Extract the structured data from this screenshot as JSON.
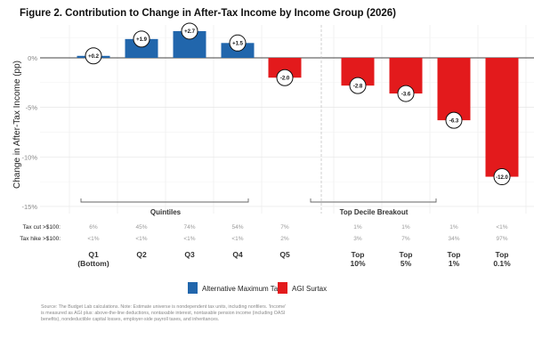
{
  "chart_data": {
    "type": "bar",
    "title": "Figure 2. Contribution to Change in After-Tax Income by Income Group (2026)",
    "ylabel": "Change in After-Tax Income (pp)",
    "xlabel": "",
    "ylim": [
      -15,
      3
    ],
    "yticks": [
      0,
      -5,
      -10,
      -15
    ],
    "ytick_labels": [
      "0%",
      "-5%",
      "-10%",
      "-15%"
    ],
    "grid": true,
    "categories": [
      {
        "label": [
          "Q1",
          "(Bottom)"
        ],
        "value": 0.2,
        "data_label": "+0.2",
        "series": "Alternative Maximum Tax",
        "tax_cut": "6%",
        "tax_hike": "<1%"
      },
      {
        "label": [
          "Q2"
        ],
        "value": 1.9,
        "data_label": "+1.9",
        "series": "Alternative Maximum Tax",
        "tax_cut": "45%",
        "tax_hike": "<1%"
      },
      {
        "label": [
          "Q3"
        ],
        "value": 2.7,
        "data_label": "+2.7",
        "series": "Alternative Maximum Tax",
        "tax_cut": "74%",
        "tax_hike": "<1%"
      },
      {
        "label": [
          "Q4"
        ],
        "value": 1.5,
        "data_label": "+1.5",
        "series": "Alternative Maximum Tax",
        "tax_cut": "54%",
        "tax_hike": "<1%"
      },
      {
        "label": [
          "Q5"
        ],
        "value": -2.0,
        "data_label": "-2.0",
        "series": "AGI Surtax",
        "tax_cut": "7%",
        "tax_hike": "2%"
      },
      {
        "label": [
          "Top",
          "10%"
        ],
        "value": -2.8,
        "data_label": "-2.8",
        "series": "AGI Surtax",
        "tax_cut": "1%",
        "tax_hike": "3%"
      },
      {
        "label": [
          "Top",
          "5%"
        ],
        "value": -3.6,
        "data_label": "-3.6",
        "series": "AGI Surtax",
        "tax_cut": "1%",
        "tax_hike": "7%"
      },
      {
        "label": [
          "Top",
          "1%"
        ],
        "value": -6.3,
        "data_label": "-6.3",
        "series": "AGI Surtax",
        "tax_cut": "1%",
        "tax_hike": "34%"
      },
      {
        "label": [
          "Top",
          "0.1%"
        ],
        "value": -12.0,
        "data_label": "-12.0",
        "series": "AGI Surtax",
        "tax_cut": "<1%",
        "tax_hike": "97%"
      }
    ],
    "groups": [
      "Quintiles",
      "Top Decile Breakout"
    ],
    "row_labels": {
      "tax_cut": "Tax cut >$100:",
      "tax_hike": "Tax hike >$100:"
    },
    "legend": {
      "placement": "bottom",
      "entries": [
        {
          "name": "Alternative Maximum Tax",
          "color": "#2166ac"
        },
        {
          "name": "AGI Surtax",
          "color": "#e31a1c"
        }
      ]
    },
    "source": [
      "Source: The Budget Lab calculations. Note: Estimate universe is nondependent tax units, including nonfilers. 'Income'",
      "is measured as AGI plus: above-the-line deductions, nontaxable interest, nontaxable pension income (including OASI",
      "benefits), nondeductible capital losses, employer-side payroll taxes, and inheritances."
    ]
  }
}
